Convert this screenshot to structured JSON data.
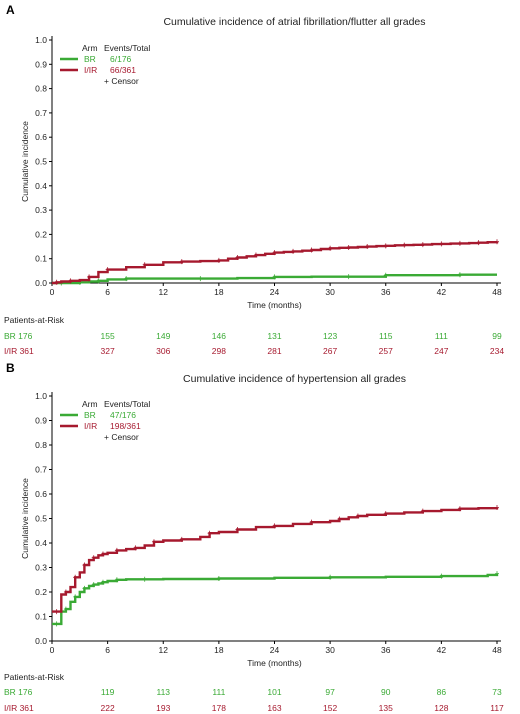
{
  "colors": {
    "BR": "#3aaa35",
    "IR": "#a6192e",
    "axis": "#000000"
  },
  "chart_data": [
    {
      "panel_label": "A",
      "type": "line",
      "title": "Cumulative incidence of atrial fibrillation/flutter all grades",
      "xlabel": "Time (months)",
      "ylabel": "Cumulative incidence",
      "xlim": [
        0,
        48
      ],
      "ylim": [
        0,
        1.0
      ],
      "xticks": [
        "0",
        "6",
        "12",
        "18",
        "24",
        "30",
        "36",
        "42",
        "48"
      ],
      "yticks": [
        "0.0",
        "0.1",
        "0.2",
        "0.3",
        "0.4",
        "0.5",
        "0.6",
        "0.7",
        "0.8",
        "0.9",
        "1.0"
      ],
      "legend": {
        "header_arm": "Arm",
        "header_events": "Events/Total",
        "censor": "+ Censor",
        "entries": [
          {
            "arm": "BR",
            "events": "6/176"
          },
          {
            "arm": "I/IR",
            "events": "66/361"
          }
        ]
      },
      "series": [
        {
          "name": "BR",
          "x": [
            0,
            1,
            2,
            3,
            4,
            5,
            6,
            8,
            12,
            16,
            20,
            24,
            28,
            32,
            35,
            36,
            40,
            44,
            48
          ],
          "y": [
            0,
            0,
            0,
            0.003,
            0.006,
            0.009,
            0.015,
            0.018,
            0.018,
            0.018,
            0.02,
            0.025,
            0.026,
            0.026,
            0.026,
            0.032,
            0.032,
            0.034,
            0.034
          ]
        },
        {
          "name": "I/IR",
          "x": [
            0,
            0.5,
            1,
            2,
            3,
            4,
            5,
            6,
            8,
            10,
            12,
            14,
            16,
            18,
            19,
            20,
            21,
            22,
            23,
            24,
            25,
            26,
            27,
            28,
            29,
            30,
            31,
            32,
            33,
            34,
            35,
            36,
            37,
            38,
            39,
            40,
            41,
            42,
            43,
            44,
            45,
            46,
            47,
            48
          ],
          "y": [
            0,
            0.003,
            0.006,
            0.009,
            0.012,
            0.025,
            0.045,
            0.055,
            0.065,
            0.075,
            0.085,
            0.088,
            0.09,
            0.093,
            0.1,
            0.105,
            0.11,
            0.115,
            0.12,
            0.125,
            0.128,
            0.13,
            0.133,
            0.136,
            0.14,
            0.143,
            0.145,
            0.146,
            0.148,
            0.15,
            0.152,
            0.153,
            0.155,
            0.156,
            0.157,
            0.158,
            0.16,
            0.161,
            0.162,
            0.163,
            0.164,
            0.166,
            0.168,
            0.17
          ]
        }
      ],
      "risk_table": {
        "header": "Patients-at-Risk",
        "rows": [
          {
            "label": "BR 176",
            "values": [
              "155",
              "149",
              "146",
              "131",
              "123",
              "115",
              "111",
              "99"
            ]
          },
          {
            "label": "I/IR 361",
            "values": [
              "327",
              "306",
              "298",
              "281",
              "267",
              "257",
              "247",
              "234"
            ]
          }
        ]
      }
    },
    {
      "panel_label": "B",
      "type": "line",
      "title": "Cumulative incidence of hypertension all grades",
      "xlabel": "Time (months)",
      "ylabel": "Cumulative incidence",
      "xlim": [
        0,
        48
      ],
      "ylim": [
        0,
        1.0
      ],
      "xticks": [
        "0",
        "6",
        "12",
        "18",
        "24",
        "30",
        "36",
        "42",
        "48"
      ],
      "yticks": [
        "0.0",
        "0.1",
        "0.2",
        "0.3",
        "0.4",
        "0.5",
        "0.6",
        "0.7",
        "0.8",
        "0.9",
        "1.0"
      ],
      "legend": {
        "header_arm": "Arm",
        "header_events": "Events/Total",
        "censor": "+ Censor",
        "entries": [
          {
            "arm": "BR",
            "events": "47/176"
          },
          {
            "arm": "I/IR",
            "events": "198/361"
          }
        ]
      },
      "series": [
        {
          "name": "BR",
          "x": [
            0,
            0.5,
            1,
            1.5,
            2,
            2.5,
            3,
            3.5,
            4,
            4.5,
            5,
            5.5,
            6,
            7,
            8,
            10,
            12,
            18,
            24,
            30,
            36,
            42,
            47,
            48
          ],
          "y": [
            0.07,
            0.07,
            0.12,
            0.13,
            0.16,
            0.18,
            0.2,
            0.215,
            0.225,
            0.23,
            0.235,
            0.24,
            0.245,
            0.25,
            0.252,
            0.252,
            0.253,
            0.255,
            0.258,
            0.26,
            0.262,
            0.265,
            0.27,
            0.275
          ]
        },
        {
          "name": "I/IR",
          "x": [
            0,
            0.5,
            1,
            1.5,
            2,
            2.5,
            3,
            3.5,
            4,
            4.5,
            5,
            5.5,
            6,
            7,
            8,
            9,
            10,
            11,
            12,
            14,
            16,
            17,
            18,
            20,
            22,
            24,
            26,
            28,
            30,
            31,
            32,
            33,
            34,
            36,
            38,
            40,
            42,
            44,
            46,
            48
          ],
          "y": [
            0.12,
            0.12,
            0.19,
            0.2,
            0.22,
            0.26,
            0.28,
            0.31,
            0.33,
            0.34,
            0.35,
            0.355,
            0.36,
            0.37,
            0.375,
            0.38,
            0.39,
            0.405,
            0.41,
            0.415,
            0.425,
            0.44,
            0.445,
            0.455,
            0.465,
            0.47,
            0.478,
            0.485,
            0.49,
            0.498,
            0.505,
            0.51,
            0.515,
            0.52,
            0.525,
            0.53,
            0.535,
            0.54,
            0.542,
            0.545
          ]
        }
      ],
      "risk_table": {
        "header": "Patients-at-Risk",
        "rows": [
          {
            "label": "BR 176",
            "values": [
              "119",
              "113",
              "111",
              "101",
              "97",
              "90",
              "86",
              "73"
            ]
          },
          {
            "label": "I/IR 361",
            "values": [
              "222",
              "193",
              "178",
              "163",
              "152",
              "135",
              "128",
              "117"
            ]
          }
        ]
      }
    }
  ]
}
